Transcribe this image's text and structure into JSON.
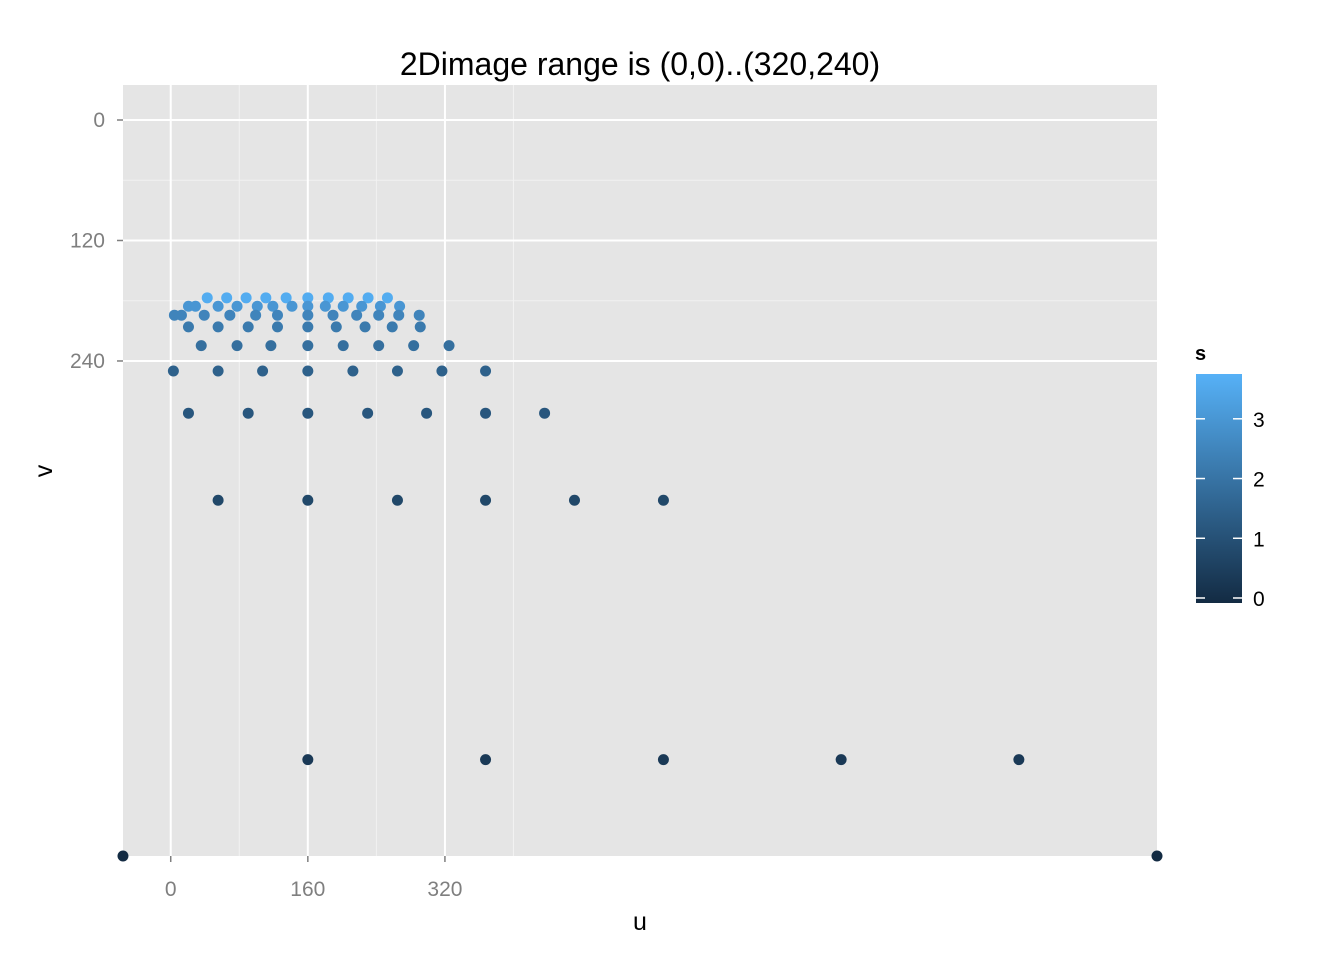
{
  "chart_data": {
    "type": "scatter",
    "title": "2Dimage range is (0,0)..(320,240)",
    "xlabel": "u",
    "ylabel": "v",
    "xlim": [
      -55.7,
      1151
    ],
    "ylim": [
      -1.7,
      733
    ],
    "y_reversed": true,
    "x_ticks": [
      0,
      160,
      320
    ],
    "y_ticks": [
      0,
      120,
      240
    ],
    "grid": true,
    "legend": {
      "title": "s",
      "position": "right",
      "ticks": [
        0,
        1,
        2,
        3
      ],
      "range": [
        0,
        3.75
      ],
      "low_color": "#132B43",
      "high_color": "#56B1F7"
    },
    "points": [
      {
        "u": 4.3,
        "v": 194.4,
        "s": 2.5
      },
      {
        "u": 20.7,
        "v": 185.5,
        "s": 3.0
      },
      {
        "u": 42.6,
        "v": 177.1,
        "s": 3.6
      },
      {
        "u": 65.3,
        "v": 177.1,
        "s": 3.6
      },
      {
        "u": 88.0,
        "v": 177.1,
        "s": 3.6
      },
      {
        "u": 111.0,
        "v": 177.1,
        "s": 3.6
      },
      {
        "u": 134.7,
        "v": 177.1,
        "s": 3.6
      },
      {
        "u": 160.0,
        "v": 177.1,
        "s": 3.6
      },
      {
        "u": 183.9,
        "v": 177.1,
        "s": 3.6
      },
      {
        "u": 207.1,
        "v": 177.1,
        "s": 3.6
      },
      {
        "u": 230.3,
        "v": 177.1,
        "s": 3.6
      },
      {
        "u": 252.9,
        "v": 177.1,
        "s": 3.6
      },
      {
        "u": 28.9,
        "v": 185.5,
        "s": 3.0
      },
      {
        "u": 55.3,
        "v": 185.5,
        "s": 3.0
      },
      {
        "u": 77.4,
        "v": 185.5,
        "s": 3.0
      },
      {
        "u": 101.0,
        "v": 185.5,
        "s": 3.0
      },
      {
        "u": 119.2,
        "v": 185.5,
        "s": 3.0
      },
      {
        "u": 141.5,
        "v": 185.5,
        "s": 3.0
      },
      {
        "u": 160.0,
        "v": 185.5,
        "s": 3.0
      },
      {
        "u": 180.4,
        "v": 185.5,
        "s": 3.0
      },
      {
        "u": 201.3,
        "v": 185.5,
        "s": 3.0
      },
      {
        "u": 222.9,
        "v": 185.5,
        "s": 3.0
      },
      {
        "u": 244.7,
        "v": 185.5,
        "s": 3.0
      },
      {
        "u": 267.1,
        "v": 185.5,
        "s": 3.0
      },
      {
        "u": 12.5,
        "v": 194.4,
        "s": 2.5
      },
      {
        "u": 39.1,
        "v": 194.4,
        "s": 2.5
      },
      {
        "u": 69.0,
        "v": 194.4,
        "s": 2.5
      },
      {
        "u": 99.1,
        "v": 194.4,
        "s": 2.5
      },
      {
        "u": 124.6,
        "v": 194.4,
        "s": 2.5
      },
      {
        "u": 160.0,
        "v": 194.4,
        "s": 2.5
      },
      {
        "u": 189.4,
        "v": 194.4,
        "s": 2.5
      },
      {
        "u": 217.0,
        "v": 194.4,
        "s": 2.5
      },
      {
        "u": 242.7,
        "v": 194.4,
        "s": 2.5
      },
      {
        "u": 266.1,
        "v": 194.4,
        "s": 2.5
      },
      {
        "u": 290.0,
        "v": 194.4,
        "s": 2.5
      },
      {
        "u": 20.7,
        "v": 206.0,
        "s": 2.2
      },
      {
        "u": 55.3,
        "v": 206.0,
        "s": 2.2
      },
      {
        "u": 90.4,
        "v": 206.0,
        "s": 2.2
      },
      {
        "u": 124.6,
        "v": 206.0,
        "s": 2.2
      },
      {
        "u": 160.0,
        "v": 206.0,
        "s": 2.2
      },
      {
        "u": 193.2,
        "v": 206.0,
        "s": 2.2
      },
      {
        "u": 226.8,
        "v": 206.0,
        "s": 2.2
      },
      {
        "u": 258.5,
        "v": 206.0,
        "s": 2.2
      },
      {
        "u": 291.2,
        "v": 206.0,
        "s": 2.2
      },
      {
        "u": 35.6,
        "v": 224.7,
        "s": 1.9
      },
      {
        "u": 77.4,
        "v": 224.7,
        "s": 1.9
      },
      {
        "u": 116.9,
        "v": 224.7,
        "s": 1.9
      },
      {
        "u": 160.0,
        "v": 224.7,
        "s": 1.9
      },
      {
        "u": 201.3,
        "v": 224.7,
        "s": 1.9
      },
      {
        "u": 242.7,
        "v": 224.7,
        "s": 1.9
      },
      {
        "u": 283.5,
        "v": 224.7,
        "s": 1.9
      },
      {
        "u": 324.8,
        "v": 224.7,
        "s": 1.9
      },
      {
        "u": 3.1,
        "v": 250.0,
        "s": 1.5
      },
      {
        "u": 55.3,
        "v": 250.0,
        "s": 1.5
      },
      {
        "u": 107.2,
        "v": 250.0,
        "s": 1.5
      },
      {
        "u": 160.0,
        "v": 250.0,
        "s": 1.5
      },
      {
        "u": 212.6,
        "v": 250.0,
        "s": 1.5
      },
      {
        "u": 264.6,
        "v": 250.0,
        "s": 1.5
      },
      {
        "u": 316.5,
        "v": 250.0,
        "s": 1.5
      },
      {
        "u": 367.4,
        "v": 250.0,
        "s": 1.5
      },
      {
        "u": 20.7,
        "v": 292.0,
        "s": 1.2
      },
      {
        "u": 90.4,
        "v": 292.0,
        "s": 1.2
      },
      {
        "u": 160.0,
        "v": 292.0,
        "s": 1.2
      },
      {
        "u": 229.8,
        "v": 292.0,
        "s": 1.2
      },
      {
        "u": 298.6,
        "v": 292.0,
        "s": 1.2
      },
      {
        "u": 367.4,
        "v": 292.0,
        "s": 1.2
      },
      {
        "u": 436.3,
        "v": 292.0,
        "s": 1.2
      },
      {
        "u": 55.3,
        "v": 378.7,
        "s": 0.8
      },
      {
        "u": 160.0,
        "v": 378.7,
        "s": 0.8
      },
      {
        "u": 264.6,
        "v": 378.7,
        "s": 0.8
      },
      {
        "u": 367.4,
        "v": 378.7,
        "s": 0.8
      },
      {
        "u": 471.2,
        "v": 378.7,
        "s": 0.8
      },
      {
        "u": 575.0,
        "v": 378.7,
        "s": 0.8
      },
      {
        "u": 160.0,
        "v": 637.0,
        "s": 0.4
      },
      {
        "u": 367.4,
        "v": 637.0,
        "s": 0.4
      },
      {
        "u": 575.0,
        "v": 637.0,
        "s": 0.4
      },
      {
        "u": 782.4,
        "v": 637.0,
        "s": 0.4
      },
      {
        "u": 989.8,
        "v": 637.0,
        "s": 0.4
      },
      {
        "u": -55.7,
        "v": 733.0,
        "s": 0.0
      },
      {
        "u": 1151.0,
        "v": 733.0,
        "s": 0.0
      }
    ]
  }
}
